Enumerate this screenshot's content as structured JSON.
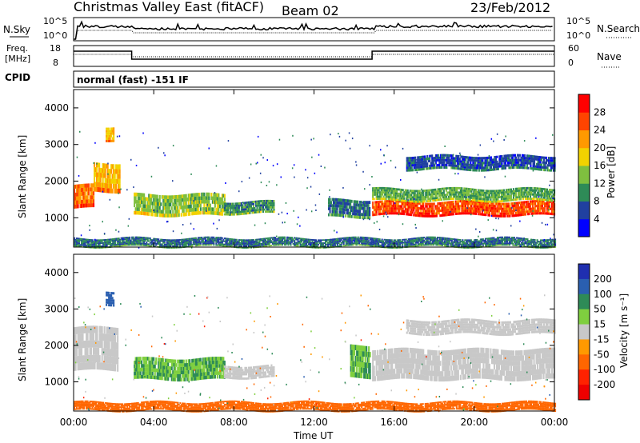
{
  "header": {
    "title": "Christmas Valley East (fitACF)",
    "beam": "Beam 02",
    "date": "23/Feb/2012"
  },
  "strip_panels": {
    "nsky": {
      "left_label": "N.Sky",
      "right_label": "N.Search",
      "left_ticks": [
        "10^5",
        "10^0"
      ],
      "right_ticks": [
        "10^5",
        "10^0"
      ]
    },
    "freq": {
      "left_label_lines": [
        "Freq.",
        "[MHz]"
      ],
      "right_label": "Nave",
      "left_ticks": [
        "18",
        "8"
      ],
      "right_ticks": [
        "60",
        "0"
      ],
      "freq_steps": [
        {
          "start_hour": 0.0,
          "end_hour": 2.9,
          "level": "high"
        },
        {
          "start_hour": 2.9,
          "end_hour": 14.9,
          "level": "low"
        },
        {
          "start_hour": 14.9,
          "end_hour": 24.0,
          "level": "high"
        }
      ]
    },
    "cpid": {
      "left_label": "CPID",
      "mode_text": "normal (fast) -151 IF"
    }
  },
  "x_axis": {
    "label": "Time UT",
    "ticks": [
      "00:00",
      "04:00",
      "08:00",
      "12:00",
      "16:00",
      "20:00",
      "00:00"
    ]
  },
  "y_axis": {
    "label": "Slant Range [km]",
    "ticks": [
      "1000",
      "2000",
      "3000",
      "4000"
    ]
  },
  "power_colorbar": {
    "label": "Power [dB]",
    "ticks": [
      "4",
      "8",
      "12",
      "16",
      "20",
      "24",
      "28"
    ],
    "colors": [
      "#0000ff",
      "#2040a0",
      "#2e8b57",
      "#7fbf3f",
      "#f2d200",
      "#ff9900",
      "#ff4400",
      "#ff0000"
    ]
  },
  "velocity_colorbar": {
    "label": "Velocity [m s⁻¹]",
    "ticks": [
      "200",
      "100",
      "50",
      "15",
      "-15",
      "-50",
      "-100",
      "-200"
    ],
    "colors": [
      "#1f2fb0",
      "#2a5fb0",
      "#2e8b57",
      "#7fcf3f",
      "#c8c8c8",
      "#ff9900",
      "#ff6600",
      "#ff2200",
      "#ee0000"
    ]
  },
  "chart_data": {
    "type": "heatmap",
    "title": "Christmas Valley East (fitACF)",
    "x": {
      "label": "Time UT",
      "range_hours": [
        0,
        24
      ],
      "ticks": [
        "00:00",
        "04:00",
        "08:00",
        "12:00",
        "16:00",
        "20:00",
        "00:00"
      ]
    },
    "y": {
      "label": "Slant Range [km]",
      "range_km": [
        200,
        4500
      ],
      "ticks": [
        1000,
        2000,
        3000,
        4000
      ]
    },
    "power_regions": [
      {
        "t_start": 0.0,
        "t_end": 1.0,
        "range_lo": 1250,
        "range_hi": 1900,
        "level": 24
      },
      {
        "t_start": 1.0,
        "t_end": 2.3,
        "range_lo": 1700,
        "range_hi": 2500,
        "level": 20
      },
      {
        "t_start": 1.6,
        "t_end": 2.0,
        "range_lo": 3100,
        "range_hi": 3500,
        "level": 20
      },
      {
        "t_start": 3.0,
        "t_end": 7.5,
        "range_lo": 1050,
        "range_hi": 1650,
        "level": 14
      },
      {
        "t_start": 7.5,
        "t_end": 10.0,
        "range_lo": 1100,
        "range_hi": 1450,
        "level": 10
      },
      {
        "t_start": 12.7,
        "t_end": 14.8,
        "range_lo": 1000,
        "range_hi": 1500,
        "level": 8
      },
      {
        "t_start": 14.9,
        "t_end": 24.0,
        "range_lo": 1050,
        "range_hi": 1450,
        "level": 26
      },
      {
        "t_start": 14.9,
        "t_end": 24.0,
        "range_lo": 1450,
        "range_hi": 1800,
        "level": 12
      },
      {
        "t_start": 16.6,
        "t_end": 24.0,
        "range_lo": 2300,
        "range_hi": 2700,
        "level": 6
      },
      {
        "t_start": 0.0,
        "t_end": 24.0,
        "range_lo": 200,
        "range_hi": 450,
        "level": 8
      }
    ],
    "velocity_regions": [
      {
        "t_start": 0.0,
        "t_end": 2.2,
        "range_lo": 1300,
        "range_hi": 2500,
        "velocity": 0
      },
      {
        "t_start": 1.6,
        "t_end": 2.0,
        "range_lo": 3100,
        "range_hi": 3500,
        "velocity": 100
      },
      {
        "t_start": 3.0,
        "t_end": 7.5,
        "range_lo": 1050,
        "range_hi": 1650,
        "velocity": 30
      },
      {
        "t_start": 7.5,
        "t_end": 10.0,
        "range_lo": 1100,
        "range_hi": 1450,
        "velocity": 0
      },
      {
        "t_start": 13.8,
        "t_end": 14.8,
        "range_lo": 1100,
        "range_hi": 2000,
        "velocity": 30
      },
      {
        "t_start": 14.9,
        "t_end": 24.0,
        "range_lo": 1050,
        "range_hi": 1900,
        "velocity": 0
      },
      {
        "t_start": 16.6,
        "t_end": 24.0,
        "range_lo": 2300,
        "range_hi": 2700,
        "velocity": 0
      },
      {
        "t_start": 0.0,
        "t_end": 24.0,
        "range_lo": 200,
        "range_hi": 450,
        "velocity": -50
      }
    ]
  }
}
